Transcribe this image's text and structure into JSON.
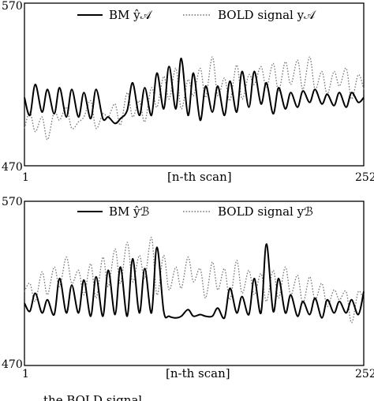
{
  "chart_data": [
    {
      "type": "line",
      "ylim": [
        470,
        570
      ],
      "xlim": [
        1,
        252
      ],
      "yticks": [
        "570",
        "470"
      ],
      "xticks": [
        "1",
        "252"
      ],
      "xlabel": "[n-th scan]",
      "legend_position": "top",
      "series": [
        {
          "name": "BM ŷ𝒜",
          "style": "solid",
          "x": [
            1,
            5,
            9,
            14,
            18,
            23,
            27,
            32,
            36,
            41,
            45,
            50,
            54,
            59,
            63,
            68,
            72,
            77,
            81,
            86,
            90,
            95,
            99,
            104,
            108,
            113,
            117,
            122,
            126,
            131,
            135,
            140,
            144,
            149,
            153,
            158,
            162,
            167,
            171,
            176,
            180,
            185,
            189,
            194,
            198,
            203,
            207,
            212,
            216,
            221,
            225,
            230,
            234,
            239,
            243,
            248,
            252
          ],
          "values": [
            512,
            501,
            520,
            503,
            517,
            502,
            518,
            500,
            517,
            500,
            515,
            499,
            517,
            499,
            500,
            496,
            499,
            504,
            521,
            501,
            518,
            501,
            527,
            505,
            531,
            505,
            536,
            501,
            527,
            498,
            519,
            503,
            519,
            501,
            522,
            503,
            528,
            506,
            528,
            508,
            521,
            502,
            518,
            505,
            515,
            506,
            516,
            509,
            517,
            508,
            514,
            507,
            515,
            506,
            515,
            509,
            512
          ]
        },
        {
          "name": "BOLD signal y𝒜",
          "style": "dotted",
          "x": [
            1,
            5,
            9,
            14,
            18,
            23,
            27,
            32,
            36,
            41,
            45,
            50,
            54,
            59,
            63,
            68,
            72,
            77,
            81,
            86,
            90,
            95,
            99,
            104,
            108,
            113,
            117,
            122,
            126,
            131,
            135,
            140,
            144,
            149,
            153,
            158,
            162,
            167,
            171,
            176,
            180,
            185,
            189,
            194,
            198,
            203,
            207,
            212,
            216,
            221,
            225,
            230,
            234,
            239,
            243,
            248,
            252
          ],
          "values": [
            493,
            503,
            491,
            500,
            486,
            503,
            498,
            506,
            493,
            497,
            500,
            510,
            493,
            502,
            500,
            508,
            495,
            515,
            500,
            510,
            497,
            518,
            506,
            525,
            511,
            530,
            505,
            523,
            513,
            530,
            512,
            537,
            513,
            524,
            510,
            532,
            511,
            526,
            520,
            531,
            518,
            533,
            516,
            534,
            520,
            535,
            517,
            537,
            517,
            528,
            514,
            528,
            519,
            530,
            511,
            526,
            517
          ]
        }
      ]
    },
    {
      "type": "line",
      "ylim": [
        470,
        570
      ],
      "xlim": [
        1,
        252
      ],
      "yticks": [
        "570",
        "470"
      ],
      "xticks": [
        "1",
        "252"
      ],
      "xlabel": "[n-th scan]",
      "legend_position": "top",
      "series": [
        {
          "name": "BM ŷℬ",
          "style": "solid",
          "x": [
            1,
            5,
            9,
            14,
            18,
            23,
            27,
            32,
            36,
            41,
            45,
            50,
            54,
            59,
            63,
            68,
            72,
            77,
            81,
            86,
            90,
            95,
            99,
            104,
            108,
            113,
            117,
            122,
            126,
            131,
            135,
            140,
            144,
            149,
            153,
            158,
            162,
            167,
            171,
            176,
            180,
            185,
            189,
            194,
            198,
            203,
            207,
            212,
            216,
            221,
            225,
            230,
            234,
            239,
            243,
            248,
            252
          ],
          "values": [
            508,
            503,
            514,
            502,
            510,
            501,
            523,
            502,
            519,
            502,
            522,
            500,
            524,
            500,
            528,
            501,
            530,
            500,
            535,
            502,
            529,
            502,
            542,
            503,
            500,
            499,
            500,
            504,
            500,
            501,
            500,
            500,
            505,
            499,
            517,
            502,
            512,
            501,
            523,
            502,
            544,
            503,
            523,
            502,
            513,
            500,
            509,
            501,
            511,
            499,
            510,
            502,
            509,
            502,
            510,
            501,
            515
          ]
        },
        {
          "name": "BOLD signal yℬ",
          "style": "dotted",
          "x": [
            1,
            5,
            9,
            14,
            18,
            23,
            27,
            32,
            36,
            41,
            45,
            50,
            54,
            59,
            63,
            68,
            72,
            77,
            81,
            86,
            90,
            95,
            99,
            104,
            108,
            113,
            117,
            122,
            126,
            131,
            135,
            140,
            144,
            149,
            153,
            158,
            162,
            167,
            171,
            176,
            180,
            185,
            189,
            194,
            198,
            203,
            207,
            212,
            216,
            221,
            225,
            230,
            234,
            239,
            243,
            248,
            252
          ],
          "values": [
            515,
            520,
            509,
            527,
            513,
            530,
            518,
            536,
            520,
            528,
            513,
            532,
            511,
            536,
            518,
            541,
            520,
            545,
            521,
            537,
            523,
            548,
            513,
            537,
            516,
            530,
            517,
            536,
            521,
            529,
            511,
            533,
            516,
            529,
            510,
            534,
            514,
            528,
            513,
            526,
            509,
            528,
            511,
            530,
            513,
            525,
            508,
            524,
            510,
            520,
            506,
            516,
            510,
            515,
            496,
            515,
            509
          ]
        }
      ]
    }
  ],
  "caption_fragment": "…the BOLD signal, …"
}
